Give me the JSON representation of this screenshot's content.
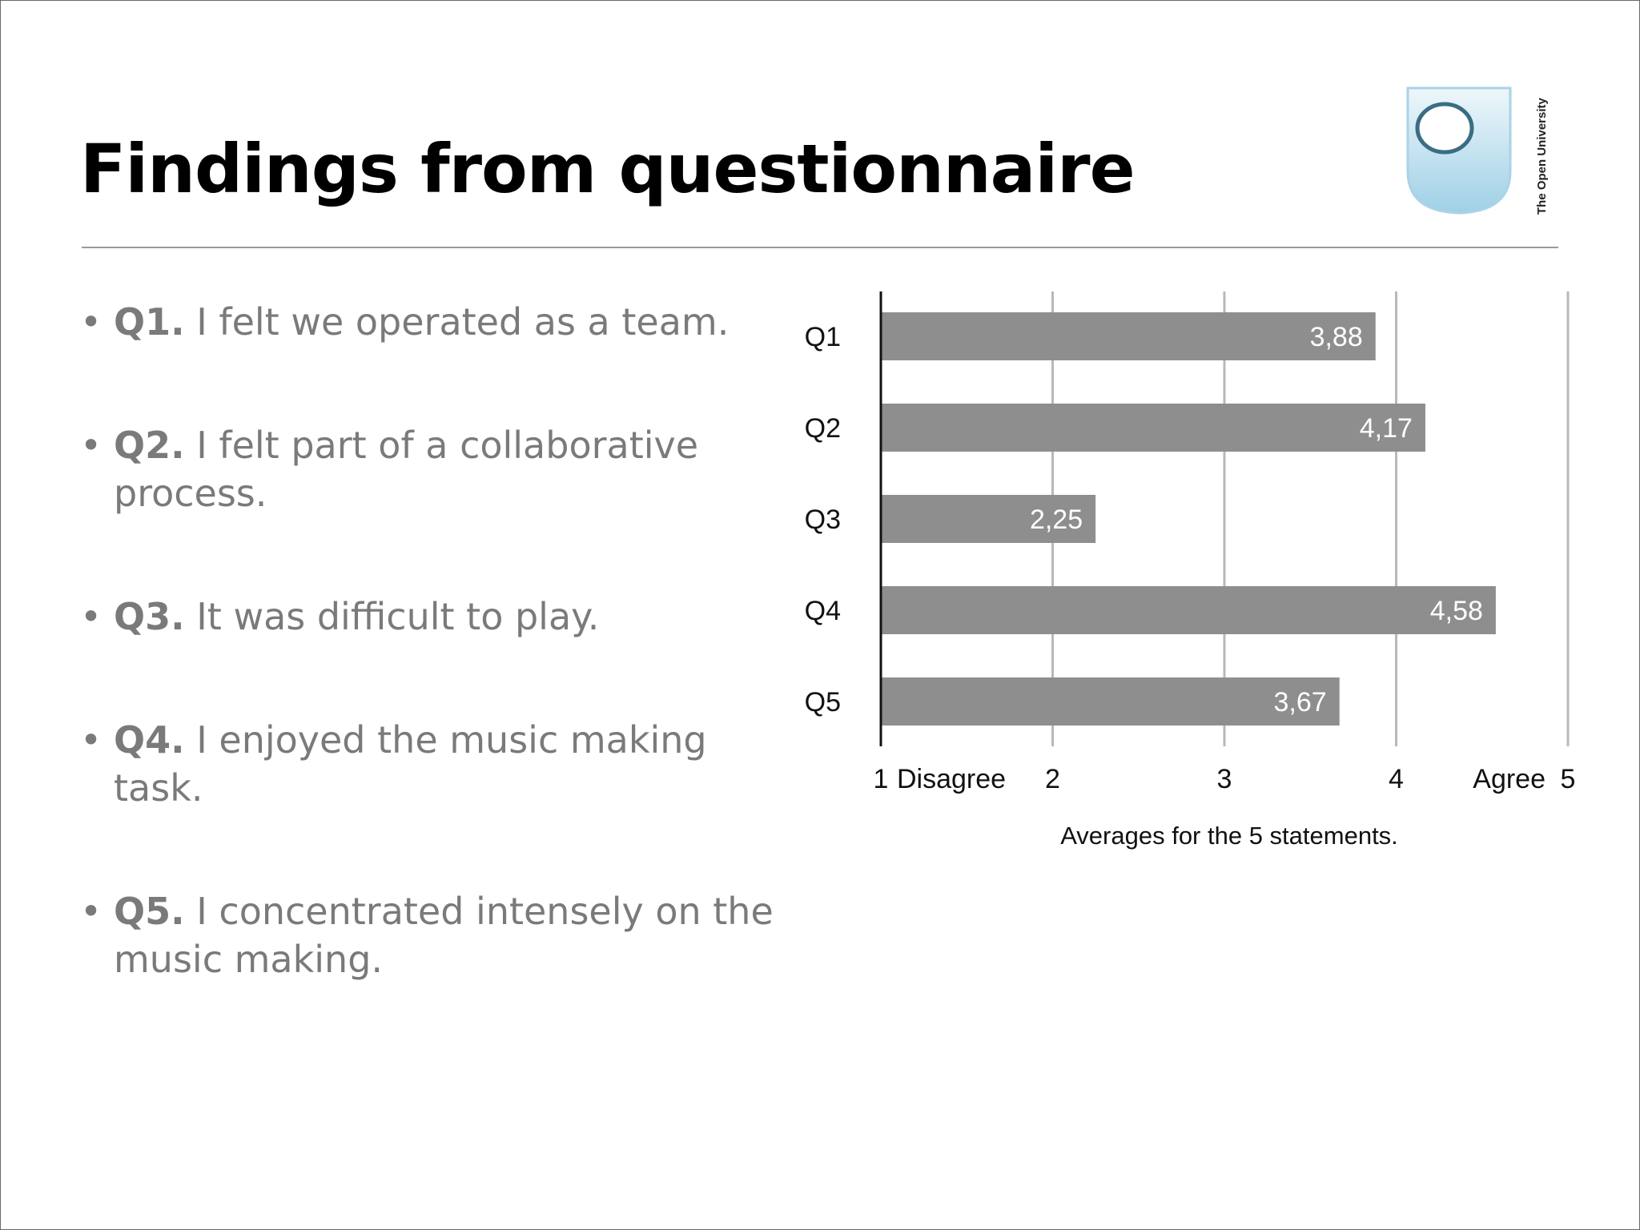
{
  "slide": {
    "title": "Findings from questionnaire",
    "logo_text": "The Open University",
    "logo_color": "#bfe0ef"
  },
  "bullets": [
    {
      "q": "Q1.",
      "text": " I felt we operated as a team."
    },
    {
      "q": "Q2.",
      "text": " I felt part of a collaborative process."
    },
    {
      "q": "Q3.",
      "text": " It was difficult to play."
    },
    {
      "q": "Q4.",
      "text": " I enjoyed the music making task."
    },
    {
      "q": "Q5.",
      "text": " I concentrated intensely on the music making."
    }
  ],
  "chart_data": {
    "type": "bar",
    "orientation": "horizontal",
    "categories": [
      "Q1",
      "Q2",
      "Q3",
      "Q4",
      "Q5"
    ],
    "values": [
      3.88,
      4.17,
      2.25,
      4.58,
      3.67
    ],
    "value_labels": [
      "3,88",
      "4,17",
      "2,25",
      "4,58",
      "3,67"
    ],
    "xlim": [
      1,
      5
    ],
    "xticks": [
      "1",
      "2",
      "3",
      "4",
      "5"
    ],
    "scale_labels": {
      "low": "Disagree",
      "high": "Agree"
    },
    "xlabel": "Averages for the 5 statements.",
    "grid": true,
    "bar_color": "#8e8e8e",
    "grid_color": "#b8b8b8"
  }
}
